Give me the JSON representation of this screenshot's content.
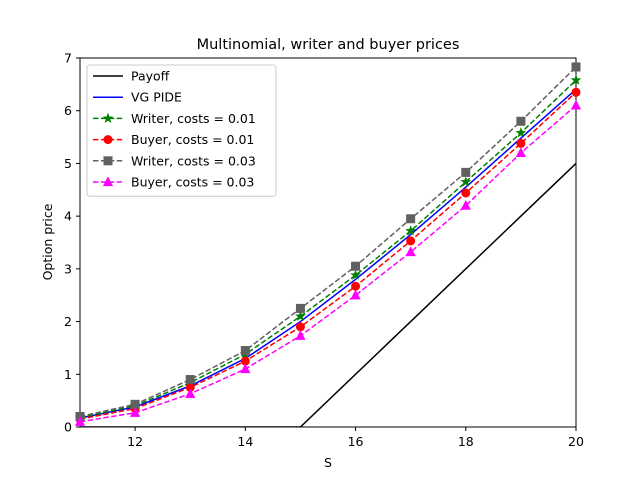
{
  "chart_data": {
    "type": "line",
    "title": "Multinomial, writer and buyer prices",
    "xlabel": "S",
    "ylabel": "Option price",
    "xlim": [
      11,
      20
    ],
    "ylim": [
      0,
      7
    ],
    "xticks": [
      12,
      14,
      16,
      18,
      20
    ],
    "yticks": [
      0,
      1,
      2,
      3,
      4,
      5,
      6,
      7
    ],
    "grid": false,
    "legend_position": "top-left",
    "series": [
      {
        "name": "Payoff",
        "color": "#000000",
        "style": "solid",
        "marker": "none",
        "x": [
          11,
          15,
          20.1
        ],
        "y": [
          0,
          0,
          5.1
        ]
      },
      {
        "name": "VG PIDE",
        "color": "#0000ff",
        "style": "solid",
        "marker": "none",
        "x": [
          11,
          12,
          13,
          14,
          15,
          16,
          17,
          18,
          19,
          20.1
        ],
        "y": [
          0.17,
          0.38,
          0.78,
          1.3,
          2.0,
          2.8,
          3.65,
          4.55,
          5.48,
          6.5
        ]
      },
      {
        "name": "Writer, costs = 0.01",
        "color": "#008000",
        "style": "dashed",
        "marker": "star",
        "x": [
          11,
          12,
          13,
          14,
          15,
          16,
          17,
          18,
          19,
          20
        ],
        "y": [
          0.18,
          0.4,
          0.84,
          1.38,
          2.1,
          2.88,
          3.72,
          4.65,
          5.58,
          6.58
        ]
      },
      {
        "name": "Buyer, costs = 0.01",
        "color": "#ff0000",
        "style": "dashed",
        "marker": "circle",
        "x": [
          11,
          12,
          13,
          14,
          15,
          16,
          17,
          18,
          19,
          20
        ],
        "y": [
          0.15,
          0.35,
          0.75,
          1.25,
          1.9,
          2.67,
          3.53,
          4.44,
          5.38,
          6.35
        ]
      },
      {
        "name": "Writer, costs = 0.03",
        "color": "#606060",
        "style": "dashed",
        "marker": "square",
        "x": [
          11,
          12,
          13,
          14,
          15,
          16,
          17,
          18,
          19,
          20
        ],
        "y": [
          0.2,
          0.43,
          0.9,
          1.45,
          2.25,
          3.05,
          3.95,
          4.83,
          5.8,
          6.83
        ]
      },
      {
        "name": "Buyer, costs = 0.03",
        "color": "#ff00ff",
        "style": "dashed",
        "marker": "triangle",
        "x": [
          11,
          12,
          13,
          14,
          15,
          16,
          17,
          18,
          19,
          20
        ],
        "y": [
          0.1,
          0.27,
          0.63,
          1.1,
          1.73,
          2.5,
          3.32,
          4.2,
          5.2,
          6.1
        ]
      }
    ]
  }
}
